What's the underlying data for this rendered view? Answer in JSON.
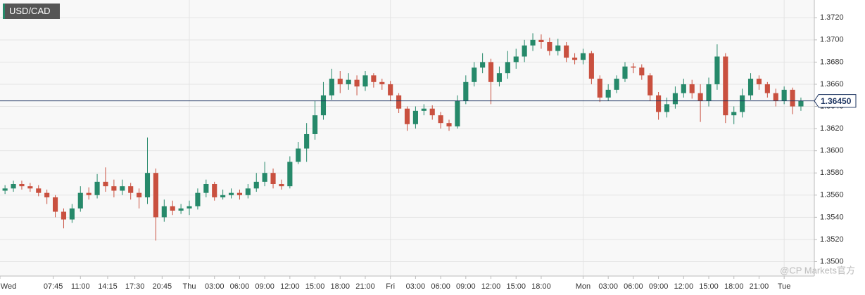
{
  "chart_data": {
    "type": "candlestick",
    "title": "USD/CAD",
    "x": [
      -22,
      -21,
      -20,
      -19,
      -18,
      -17,
      -16,
      -15,
      -14,
      -13,
      -12,
      -11,
      -10,
      -9,
      -8,
      -7,
      -6,
      -5,
      -4,
      -3,
      -2,
      -1,
      0,
      1,
      2,
      3,
      4,
      5,
      6,
      7,
      8,
      9,
      10,
      11,
      12,
      13,
      14,
      15,
      16,
      17,
      18,
      19,
      20,
      21,
      22,
      23,
      24,
      25,
      26,
      27,
      28,
      29,
      30,
      31,
      32,
      33,
      34,
      35,
      36,
      37,
      38,
      39,
      40,
      41,
      42,
      43,
      44,
      45,
      46,
      47,
      48,
      49,
      50,
      51,
      52,
      53,
      54,
      55,
      56,
      57,
      58,
      59,
      60,
      61,
      62,
      63,
      64,
      65,
      66,
      67,
      68,
      69,
      70,
      71,
      72,
      73
    ],
    "open": [
      1.3564,
      1.3566,
      1.357,
      1.3568,
      1.3566,
      1.3562,
      1.3558,
      1.3545,
      1.3538,
      1.3548,
      1.3562,
      1.356,
      1.3572,
      1.3568,
      1.3564,
      1.3568,
      1.3562,
      1.3558,
      1.358,
      1.354,
      1.355,
      1.3546,
      1.3548,
      1.355,
      1.3562,
      1.357,
      1.3558,
      1.356,
      1.3562,
      1.356,
      1.3566,
      1.3572,
      1.358,
      1.357,
      1.3568,
      1.359,
      1.3602,
      1.3615,
      1.3632,
      1.365,
      1.3665,
      1.366,
      1.3664,
      1.3658,
      1.3668,
      1.3662,
      1.366,
      1.365,
      1.3638,
      1.3624,
      1.3636,
      1.3638,
      1.3632,
      1.3625,
      1.3622,
      1.3645,
      1.3662,
      1.3675,
      1.368,
      1.3662,
      1.367,
      1.368,
      1.3685,
      1.3695,
      1.37,
      1.3698,
      1.369,
      1.3695,
      1.3684,
      1.3682,
      1.3688,
      1.3665,
      1.3648,
      1.3655,
      1.3665,
      1.3676,
      1.3675,
      1.3668,
      1.365,
      1.3635,
      1.3642,
      1.3652,
      1.366,
      1.3652,
      1.3645,
      1.366,
      1.3685,
      1.3632,
      1.3635,
      1.365,
      1.3665,
      1.366,
      1.3652,
      1.3645,
      1.3655,
      1.364
    ],
    "high": [
      1.3569,
      1.3573,
      1.3573,
      1.3571,
      1.3569,
      1.3565,
      1.356,
      1.3548,
      1.3552,
      1.3568,
      1.3567,
      1.3579,
      1.3585,
      1.3574,
      1.3574,
      1.3571,
      1.3566,
      1.3612,
      1.3584,
      1.3556,
      1.3555,
      1.3552,
      1.3555,
      1.3566,
      1.3574,
      1.3572,
      1.3565,
      1.3566,
      1.3565,
      1.357,
      1.358,
      1.359,
      1.3584,
      1.3574,
      1.3595,
      1.3608,
      1.3625,
      1.3645,
      1.3662,
      1.3674,
      1.3672,
      1.367,
      1.3668,
      1.3672,
      1.367,
      1.3665,
      1.3663,
      1.3652,
      1.364,
      1.364,
      1.3642,
      1.3641,
      1.3635,
      1.3628,
      1.365,
      1.3668,
      1.368,
      1.3688,
      1.3683,
      1.3676,
      1.369,
      1.3692,
      1.37,
      1.3706,
      1.3705,
      1.3702,
      1.3701,
      1.3698,
      1.3688,
      1.3692,
      1.369,
      1.3668,
      1.366,
      1.3668,
      1.368,
      1.3679,
      1.3678,
      1.367,
      1.3653,
      1.3648,
      1.3658,
      1.3665,
      1.3664,
      1.366,
      1.3666,
      1.3696,
      1.3688,
      1.364,
      1.3656,
      1.367,
      1.3668,
      1.3662,
      1.3656,
      1.3658,
      1.3657,
      1.3648
    ],
    "low": [
      1.3561,
      1.3563,
      1.3565,
      1.3563,
      1.3559,
      1.3552,
      1.354,
      1.353,
      1.3535,
      1.3545,
      1.3556,
      1.3557,
      1.3563,
      1.3558,
      1.356,
      1.3556,
      1.3548,
      1.3552,
      1.3519,
      1.3536,
      1.3542,
      1.3543,
      1.3542,
      1.3547,
      1.3558,
      1.3555,
      1.3556,
      1.3557,
      1.3556,
      1.3557,
      1.3563,
      1.3568,
      1.3566,
      1.3565,
      1.3566,
      1.3588,
      1.359,
      1.361,
      1.3628,
      1.3646,
      1.3652,
      1.3655,
      1.365,
      1.3654,
      1.3657,
      1.3655,
      1.3645,
      1.3634,
      1.3618,
      1.362,
      1.3632,
      1.3628,
      1.362,
      1.3618,
      1.362,
      1.3642,
      1.3658,
      1.367,
      1.3642,
      1.3658,
      1.3665,
      1.3674,
      1.368,
      1.369,
      1.3692,
      1.3686,
      1.3686,
      1.368,
      1.3678,
      1.3678,
      1.366,
      1.3644,
      1.3645,
      1.3652,
      1.3662,
      1.367,
      1.3664,
      1.3645,
      1.3628,
      1.363,
      1.3638,
      1.3648,
      1.3647,
      1.3626,
      1.364,
      1.3655,
      1.3625,
      1.3624,
      1.363,
      1.3646,
      1.3655,
      1.3648,
      1.364,
      1.3642,
      1.3633,
      1.3636
    ],
    "close": [
      1.3566,
      1.357,
      1.3568,
      1.3566,
      1.3562,
      1.3558,
      1.3545,
      1.3538,
      1.3548,
      1.3562,
      1.356,
      1.3572,
      1.3568,
      1.3564,
      1.3568,
      1.3562,
      1.3558,
      1.358,
      1.354,
      1.355,
      1.3546,
      1.3548,
      1.355,
      1.3562,
      1.357,
      1.3558,
      1.356,
      1.3562,
      1.356,
      1.3566,
      1.3572,
      1.358,
      1.357,
      1.3568,
      1.359,
      1.3602,
      1.3615,
      1.3632,
      1.365,
      1.3665,
      1.366,
      1.3664,
      1.3658,
      1.3668,
      1.3662,
      1.366,
      1.365,
      1.3638,
      1.3624,
      1.3636,
      1.3638,
      1.3632,
      1.3625,
      1.3622,
      1.3645,
      1.3662,
      1.3675,
      1.368,
      1.3662,
      1.367,
      1.368,
      1.3685,
      1.3695,
      1.37,
      1.3698,
      1.369,
      1.3695,
      1.3684,
      1.3682,
      1.3688,
      1.3665,
      1.3648,
      1.3655,
      1.3665,
      1.3676,
      1.3675,
      1.3668,
      1.365,
      1.3635,
      1.3642,
      1.3652,
      1.366,
      1.3652,
      1.3645,
      1.366,
      1.3685,
      1.3632,
      1.3635,
      1.365,
      1.3665,
      1.366,
      1.3652,
      1.3645,
      1.3655,
      1.364,
      1.3645
    ],
    "up_color": "#26896a",
    "down_color": "#c9503f",
    "current_price": {
      "value": 1.3645,
      "label": "1.36450"
    },
    "current_color": "#1d3461",
    "xlim": [
      -22.6,
      74.6
    ],
    "ylim": [
      1.3487,
      1.3736
    ],
    "xticks": [
      {
        "value": -24,
        "label": "Wed"
      },
      {
        "value": -16.25,
        "label": "07:45"
      },
      {
        "value": -13,
        "label": "11:00"
      },
      {
        "value": -9.75,
        "label": "14:15"
      },
      {
        "value": -6.5,
        "label": "17:30"
      },
      {
        "value": -3.25,
        "label": "20:45"
      },
      {
        "value": 0,
        "label": "Thu"
      },
      {
        "value": 3,
        "label": "03:00"
      },
      {
        "value": 6,
        "label": "06:00"
      },
      {
        "value": 9,
        "label": "09:00"
      },
      {
        "value": 12,
        "label": "12:00"
      },
      {
        "value": 15,
        "label": "15:00"
      },
      {
        "value": 18,
        "label": "18:00"
      },
      {
        "value": 21,
        "label": "21:00"
      },
      {
        "value": 24,
        "label": "Fri"
      },
      {
        "value": 27,
        "label": "03:00"
      },
      {
        "value": 30,
        "label": "06:00"
      },
      {
        "value": 33,
        "label": "09:00"
      },
      {
        "value": 36,
        "label": "12:00"
      },
      {
        "value": 39,
        "label": "15:00"
      },
      {
        "value": 42,
        "label": "18:00"
      },
      {
        "value": 47,
        "label": "Mon"
      },
      {
        "value": 50,
        "label": "03:00"
      },
      {
        "value": 53,
        "label": "06:00"
      },
      {
        "value": 56,
        "label": "09:00"
      },
      {
        "value": 59,
        "label": "12:00"
      },
      {
        "value": 62,
        "label": "15:00"
      },
      {
        "value": 65,
        "label": "18:00"
      },
      {
        "value": 68,
        "label": "21:00"
      },
      {
        "value": 71,
        "label": "Tue"
      }
    ],
    "yticks": [
      {
        "value": 1.35,
        "label": "1.3500"
      },
      {
        "value": 1.352,
        "label": "1.3520"
      },
      {
        "value": 1.354,
        "label": "1.3540"
      },
      {
        "value": 1.356,
        "label": "1.3560"
      },
      {
        "value": 1.358,
        "label": "1.3580"
      },
      {
        "value": 1.36,
        "label": "1.3600"
      },
      {
        "value": 1.362,
        "label": "1.3620"
      },
      {
        "value": 1.364,
        "label": "1.3640"
      },
      {
        "value": 1.366,
        "label": "1.3660"
      },
      {
        "value": 1.368,
        "label": "1.3680"
      },
      {
        "value": 1.37,
        "label": "1.3700"
      },
      {
        "value": 1.372,
        "label": "1.3720"
      }
    ],
    "grid": true,
    "watermark": "@CP Markets官方"
  }
}
